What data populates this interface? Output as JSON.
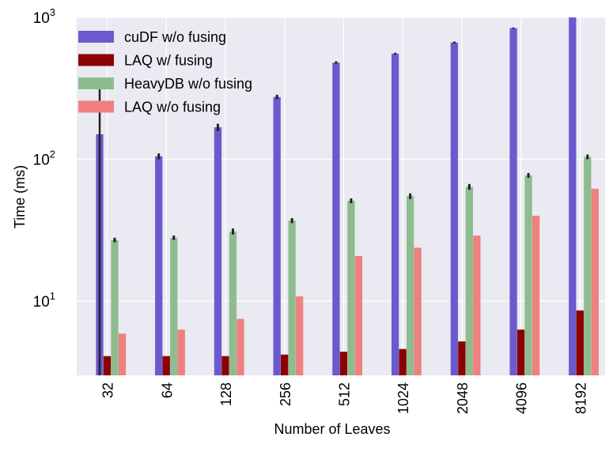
{
  "chart_data": {
    "type": "bar",
    "title": "",
    "xlabel": "Number of Leaves",
    "ylabel": "Time (ms)",
    "yscale": "log",
    "ylim": [
      3,
      1000
    ],
    "yticks": [
      {
        "value": 10,
        "base": "10",
        "exp": "1"
      },
      {
        "value": 100,
        "base": "10",
        "exp": "2"
      },
      {
        "value": 1000,
        "base": "10",
        "exp": "3"
      }
    ],
    "categories": [
      "32",
      "64",
      "128",
      "256",
      "512",
      "1024",
      "2048",
      "4096",
      "8192"
    ],
    "legend_position": "top-left",
    "grid": true,
    "series": [
      {
        "name": "cuDF w/o fusing",
        "color": "#6a5acd",
        "values": [
          150,
          105,
          168,
          275,
          480,
          555,
          665,
          840,
          1000
        ],
        "error": [
          [
            0,
            320
          ],
          [
            100,
            110
          ],
          [
            158,
            178
          ],
          [
            265,
            285
          ],
          [
            472,
            490
          ],
          [
            548,
            563
          ],
          [
            655,
            675
          ],
          [
            832,
            848
          ],
          [
            1000,
            1000
          ]
        ]
      },
      {
        "name": "LAQ w/ fusing",
        "color": "#8b0000",
        "values": [
          4.1,
          4.1,
          4.1,
          4.2,
          4.4,
          4.6,
          5.2,
          6.3,
          8.6
        ],
        "error": null
      },
      {
        "name": "HeavyDB w/o fusing",
        "color": "#8fbc8f",
        "values": [
          27,
          28,
          31,
          37,
          51,
          55,
          64,
          77,
          104
        ],
        "error": [
          [
            26,
            28
          ],
          [
            27,
            29
          ],
          [
            29.5,
            32.5
          ],
          [
            35.5,
            38.5
          ],
          [
            49,
            53
          ],
          [
            52.5,
            57.5
          ],
          [
            61,
            67
          ],
          [
            74,
            80
          ],
          [
            100,
            108
          ]
        ]
      },
      {
        "name": "LAQ w/o fusing",
        "color": "#f08080",
        "values": [
          5.9,
          6.3,
          7.5,
          10.8,
          20.8,
          23.8,
          29,
          40,
          62
        ],
        "error": null
      }
    ]
  }
}
